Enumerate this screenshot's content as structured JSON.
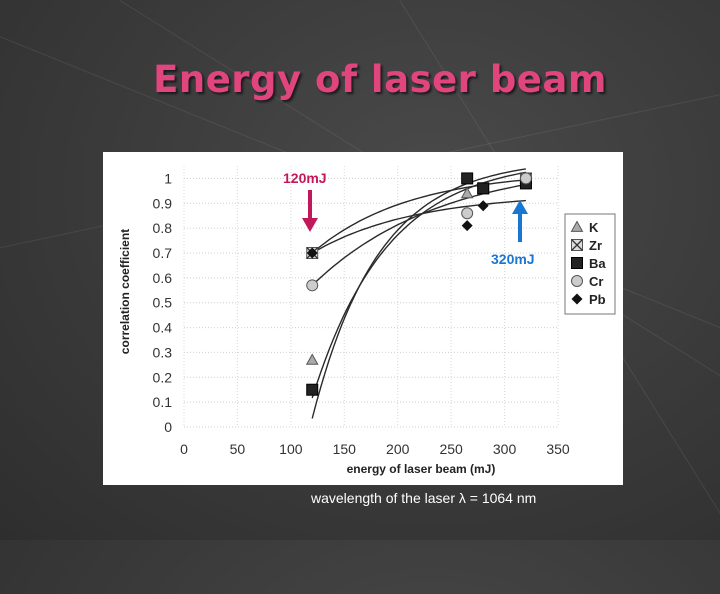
{
  "slide": {
    "title": "Energy of laser beam",
    "caption": "wavelength of the laser λ = 1064 nm",
    "annotations": [
      {
        "text": "120mJ",
        "color": "#c2185b"
      },
      {
        "text": "320mJ",
        "color": "#1976d2"
      }
    ]
  },
  "colors": {
    "title": "#e0457e",
    "arrow_120": "#c2185b",
    "arrow_320": "#1976d2"
  },
  "chart_data": {
    "type": "scatter",
    "xlabel": "energy of laser beam (mJ)",
    "ylabel": "correlation coefficient",
    "xlim": [
      0,
      350
    ],
    "ylim": [
      0,
      1.05
    ],
    "xticks": [
      0,
      50,
      100,
      150,
      200,
      250,
      300,
      350
    ],
    "yticks": [
      0,
      0.1,
      0.2,
      0.3,
      0.4,
      0.5,
      0.6,
      0.7,
      0.8,
      0.9,
      1
    ],
    "grid": true,
    "legend_position": "right",
    "series": [
      {
        "name": "K",
        "marker": "triangle",
        "x": [
          120,
          265,
          320
        ],
        "y": [
          0.27,
          0.94,
          1.0
        ]
      },
      {
        "name": "Zr",
        "marker": "x-square",
        "x": [
          120,
          280,
          320
        ],
        "y": [
          0.7,
          0.96,
          1.0
        ]
      },
      {
        "name": "Ba",
        "marker": "square",
        "x": [
          120,
          265,
          280,
          320
        ],
        "y": [
          0.15,
          1.0,
          0.96,
          0.98
        ]
      },
      {
        "name": "Cr",
        "marker": "circle",
        "x": [
          120,
          265,
          320
        ],
        "y": [
          0.57,
          0.86,
          1.0
        ]
      },
      {
        "name": "Pb",
        "marker": "diamond",
        "x": [
          120,
          265,
          280
        ],
        "y": [
          0.7,
          0.81,
          0.89
        ]
      }
    ]
  }
}
